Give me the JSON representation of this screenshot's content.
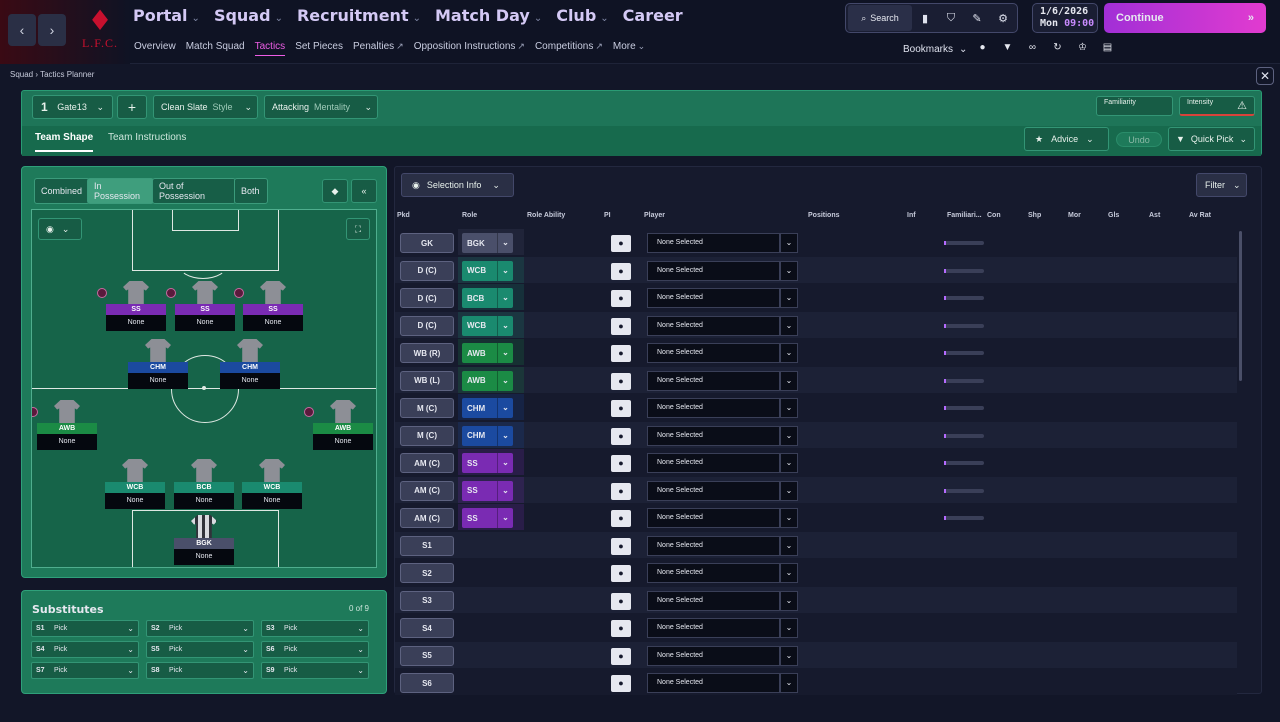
{
  "nav": {
    "back": "‹",
    "forward": "›",
    "crest_bird": "♦",
    "crest_text": "L.F.C.",
    "main": [
      {
        "label": "Portal",
        "active": false
      },
      {
        "label": "Squad",
        "active": false
      },
      {
        "label": "Recruitment",
        "active": false
      },
      {
        "label": "Match Day",
        "active": true
      },
      {
        "label": "Club",
        "active": false
      },
      {
        "label": "Career",
        "active": false
      }
    ],
    "sub": [
      "Overview",
      "Match Squad",
      "Tactics",
      "Set Pieces",
      "Penalties",
      "Opposition Instructions",
      "Competitions",
      "More"
    ],
    "sub_active": "Tactics",
    "search": "Search",
    "date": "1/6/2026",
    "day": "Mon",
    "time": "09:00",
    "continue": "Continue",
    "bookmarks": "Bookmarks"
  },
  "breadcrumb": {
    "a": "Squad",
    "b": "Tactics Planner"
  },
  "header": {
    "tactic_num": "1",
    "tactic_name": "Gate13",
    "style_value": "Clean Slate",
    "style_label": "Style",
    "mentality_value": "Attacking",
    "mentality_label": "Mentality",
    "familiarity": "Familiarity",
    "intensity": "Intensity",
    "tab1": "Team Shape",
    "tab2": "Team Instructions",
    "advice": "Advice",
    "undo": "Undo",
    "quickpick": "Quick Pick"
  },
  "modes": [
    "Combined",
    "In Possession",
    "Out of Possession",
    "Both"
  ],
  "active_mode": "In Possession",
  "pitch_players": [
    {
      "role": "SS",
      "name": "None",
      "color": "#7a2bb3"
    },
    {
      "role": "SS",
      "name": "None",
      "color": "#7a2bb3"
    },
    {
      "role": "SS",
      "name": "None",
      "color": "#7a2bb3"
    },
    {
      "role": "CHM",
      "name": "None",
      "color": "#1b4aa0"
    },
    {
      "role": "CHM",
      "name": "None",
      "color": "#1b4aa0"
    },
    {
      "role": "AWB",
      "name": "None",
      "color": "#1b8b45"
    },
    {
      "role": "AWB",
      "name": "None",
      "color": "#1b8b45"
    },
    {
      "role": "WCB",
      "name": "None",
      "color": "#1a8a6f"
    },
    {
      "role": "BCB",
      "name": "None",
      "color": "#1a8a6f"
    },
    {
      "role": "WCB",
      "name": "None",
      "color": "#1a8a6f"
    },
    {
      "role": "BGK",
      "name": "None",
      "color": "#4a4f6a"
    }
  ],
  "subs": {
    "title": "Substitutes",
    "count": "0 of 9",
    "slots": [
      {
        "n": "S1",
        "v": "Pick"
      },
      {
        "n": "S2",
        "v": "Pick"
      },
      {
        "n": "S3",
        "v": "Pick"
      },
      {
        "n": "S4",
        "v": "Pick"
      },
      {
        "n": "S5",
        "v": "Pick"
      },
      {
        "n": "S6",
        "v": "Pick"
      },
      {
        "n": "S7",
        "v": "Pick"
      },
      {
        "n": "S8",
        "v": "Pick"
      },
      {
        "n": "S9",
        "v": "Pick"
      }
    ]
  },
  "selection": {
    "info": "Selection Info",
    "filter": "Filter"
  },
  "columns": [
    "Pkd",
    "Role",
    "Role Ability",
    "PI",
    "Player",
    "Positions",
    "Inf",
    "Familiari...",
    "Con",
    "Shp",
    "Mor",
    "Gls",
    "Ast",
    "Av Rat"
  ],
  "rows": [
    {
      "pos": "GK",
      "role": "BGK",
      "player": "None Selected",
      "color": "#4a4f6a"
    },
    {
      "pos": "D (C)",
      "role": "WCB",
      "player": "None Selected",
      "color": "#1a8a6f"
    },
    {
      "pos": "D (C)",
      "role": "BCB",
      "player": "None Selected",
      "color": "#1a8a6f"
    },
    {
      "pos": "D (C)",
      "role": "WCB",
      "player": "None Selected",
      "color": "#1a8a6f"
    },
    {
      "pos": "WB (R)",
      "role": "AWB",
      "player": "None Selected",
      "color": "#1b8b45"
    },
    {
      "pos": "WB (L)",
      "role": "AWB",
      "player": "None Selected",
      "color": "#1b8b45"
    },
    {
      "pos": "M (C)",
      "role": "CHM",
      "player": "None Selected",
      "color": "#1b4aa0"
    },
    {
      "pos": "M (C)",
      "role": "CHM",
      "player": "None Selected",
      "color": "#1b4aa0"
    },
    {
      "pos": "AM (C)",
      "role": "SS",
      "player": "None Selected",
      "color": "#7a2bb3"
    },
    {
      "pos": "AM (C)",
      "role": "SS",
      "player": "None Selected",
      "color": "#7a2bb3"
    },
    {
      "pos": "AM (C)",
      "role": "SS",
      "player": "None Selected",
      "color": "#7a2bb3"
    },
    {
      "pos": "S1",
      "role": "",
      "player": "None Selected",
      "color": ""
    },
    {
      "pos": "S2",
      "role": "",
      "player": "None Selected",
      "color": ""
    },
    {
      "pos": "S3",
      "role": "",
      "player": "None Selected",
      "color": ""
    },
    {
      "pos": "S4",
      "role": "",
      "player": "None Selected",
      "color": ""
    },
    {
      "pos": "S5",
      "role": "",
      "player": "None Selected",
      "color": ""
    },
    {
      "pos": "S6",
      "role": "",
      "player": "None Selected",
      "color": ""
    }
  ],
  "colors": {
    "accent": "#ee5de6",
    "panel_green": "#1e7a5a"
  }
}
